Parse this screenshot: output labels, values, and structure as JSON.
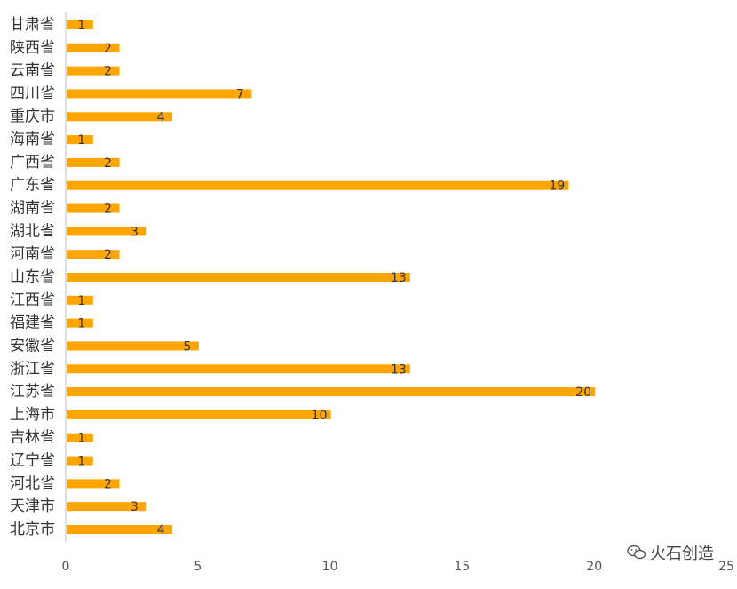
{
  "chart_data": {
    "type": "bar",
    "orientation": "horizontal",
    "categories": [
      "甘肃省",
      "陕西省",
      "云南省",
      "四川省",
      "重庆市",
      "海南省",
      "广西省",
      "广东省",
      "湖南省",
      "湖北省",
      "河南省",
      "山东省",
      "江西省",
      "福建省",
      "安徽省",
      "浙江省",
      "江苏省",
      "上海市",
      "吉林省",
      "辽宁省",
      "河北省",
      "天津市",
      "北京市"
    ],
    "values": [
      1,
      2,
      2,
      7,
      4,
      1,
      2,
      19,
      2,
      3,
      2,
      13,
      1,
      1,
      5,
      13,
      20,
      10,
      1,
      1,
      2,
      3,
      4
    ],
    "xlim": [
      0,
      25
    ],
    "x_ticks": [
      "0",
      "5",
      "10",
      "15",
      "20",
      "25"
    ],
    "bar_color": "#FFA500",
    "grid": false,
    "legend": "none",
    "data_labels": true
  },
  "watermark": {
    "text": "火石创造",
    "icon": "wechat-icon"
  }
}
